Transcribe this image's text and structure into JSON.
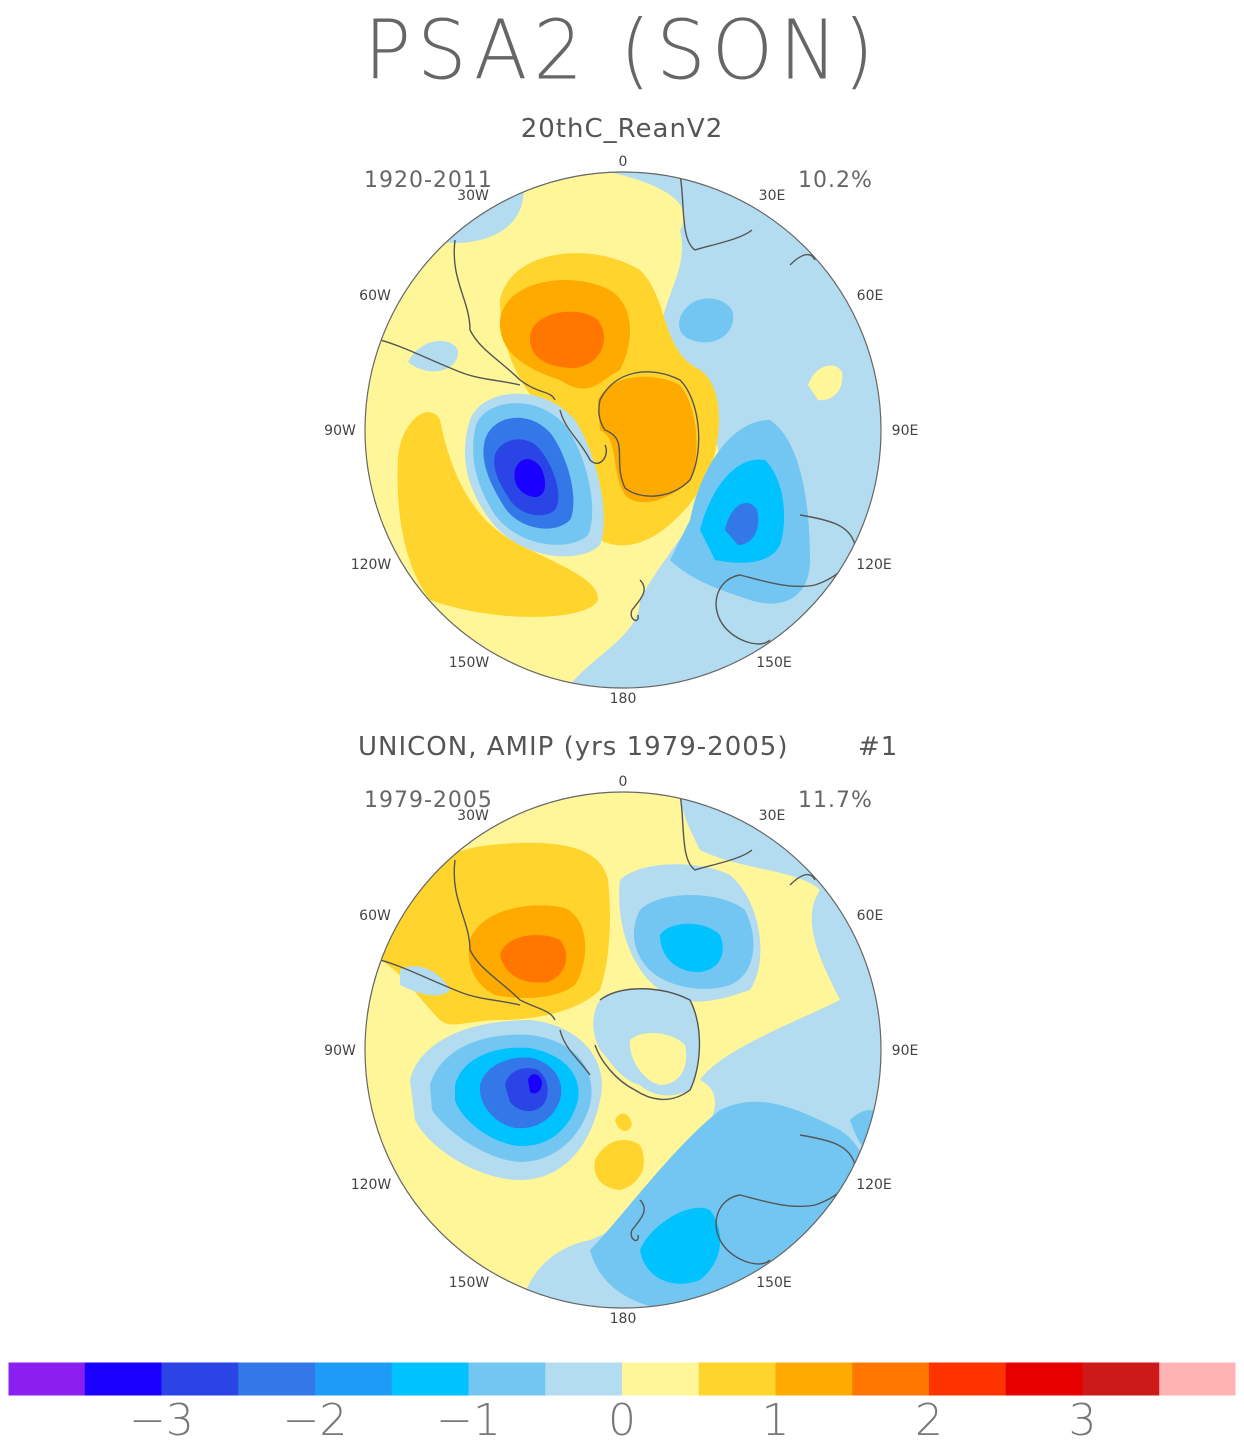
{
  "title": "PSA2 (SON)",
  "panels": [
    {
      "subtitle": "20thC_ReanV2",
      "period": "1920-2011",
      "variance": "10.2%",
      "lon_labels": {
        "0": "0",
        "30E": "30E",
        "60E": "60E",
        "90E": "90E",
        "120E": "120E",
        "150E": "150E",
        "180": "180",
        "150W": "150W",
        "120W": "120W",
        "90W": "90W",
        "60W": "60W",
        "30W": "30W"
      }
    },
    {
      "subtitle": "UNICON, AMIP (yrs 1979-2005)",
      "number": "#1",
      "period": "1979-2005",
      "variance": "11.7%",
      "lon_labels": {
        "0": "0",
        "30E": "30E",
        "60E": "60E",
        "90E": "90E",
        "120E": "120E",
        "150E": "150E",
        "180": "180",
        "150W": "150W",
        "120W": "120W",
        "90W": "90W",
        "60W": "60W",
        "30W": "30W"
      }
    }
  ],
  "colorbar": {
    "colors": [
      "#8b1ff0",
      "#1a00ff",
      "#2a44e6",
      "#3377e8",
      "#1c9cf7",
      "#00c2ff",
      "#73c6f2",
      "#b4dcf0",
      "#fff69a",
      "#ffd42d",
      "#ffaa00",
      "#ff7700",
      "#ff3300",
      "#e60000",
      "#cc1a1a",
      "#ffb3b3"
    ],
    "labels": [
      "−3",
      "−2",
      "−1",
      "0",
      "1",
      "2",
      "3"
    ]
  },
  "colors": {
    "neg4": "#2a44e6",
    "neg3": "#3377e8",
    "neg2": "#00c2ff",
    "neg1": "#73c6f2",
    "neg0": "#b4dcf0",
    "pos0": "#fff69a",
    "pos1": "#ffd42d",
    "pos2": "#ffaa00",
    "pos3": "#ff7700",
    "deep": "#1a00ff",
    "coast": "#555555"
  }
}
